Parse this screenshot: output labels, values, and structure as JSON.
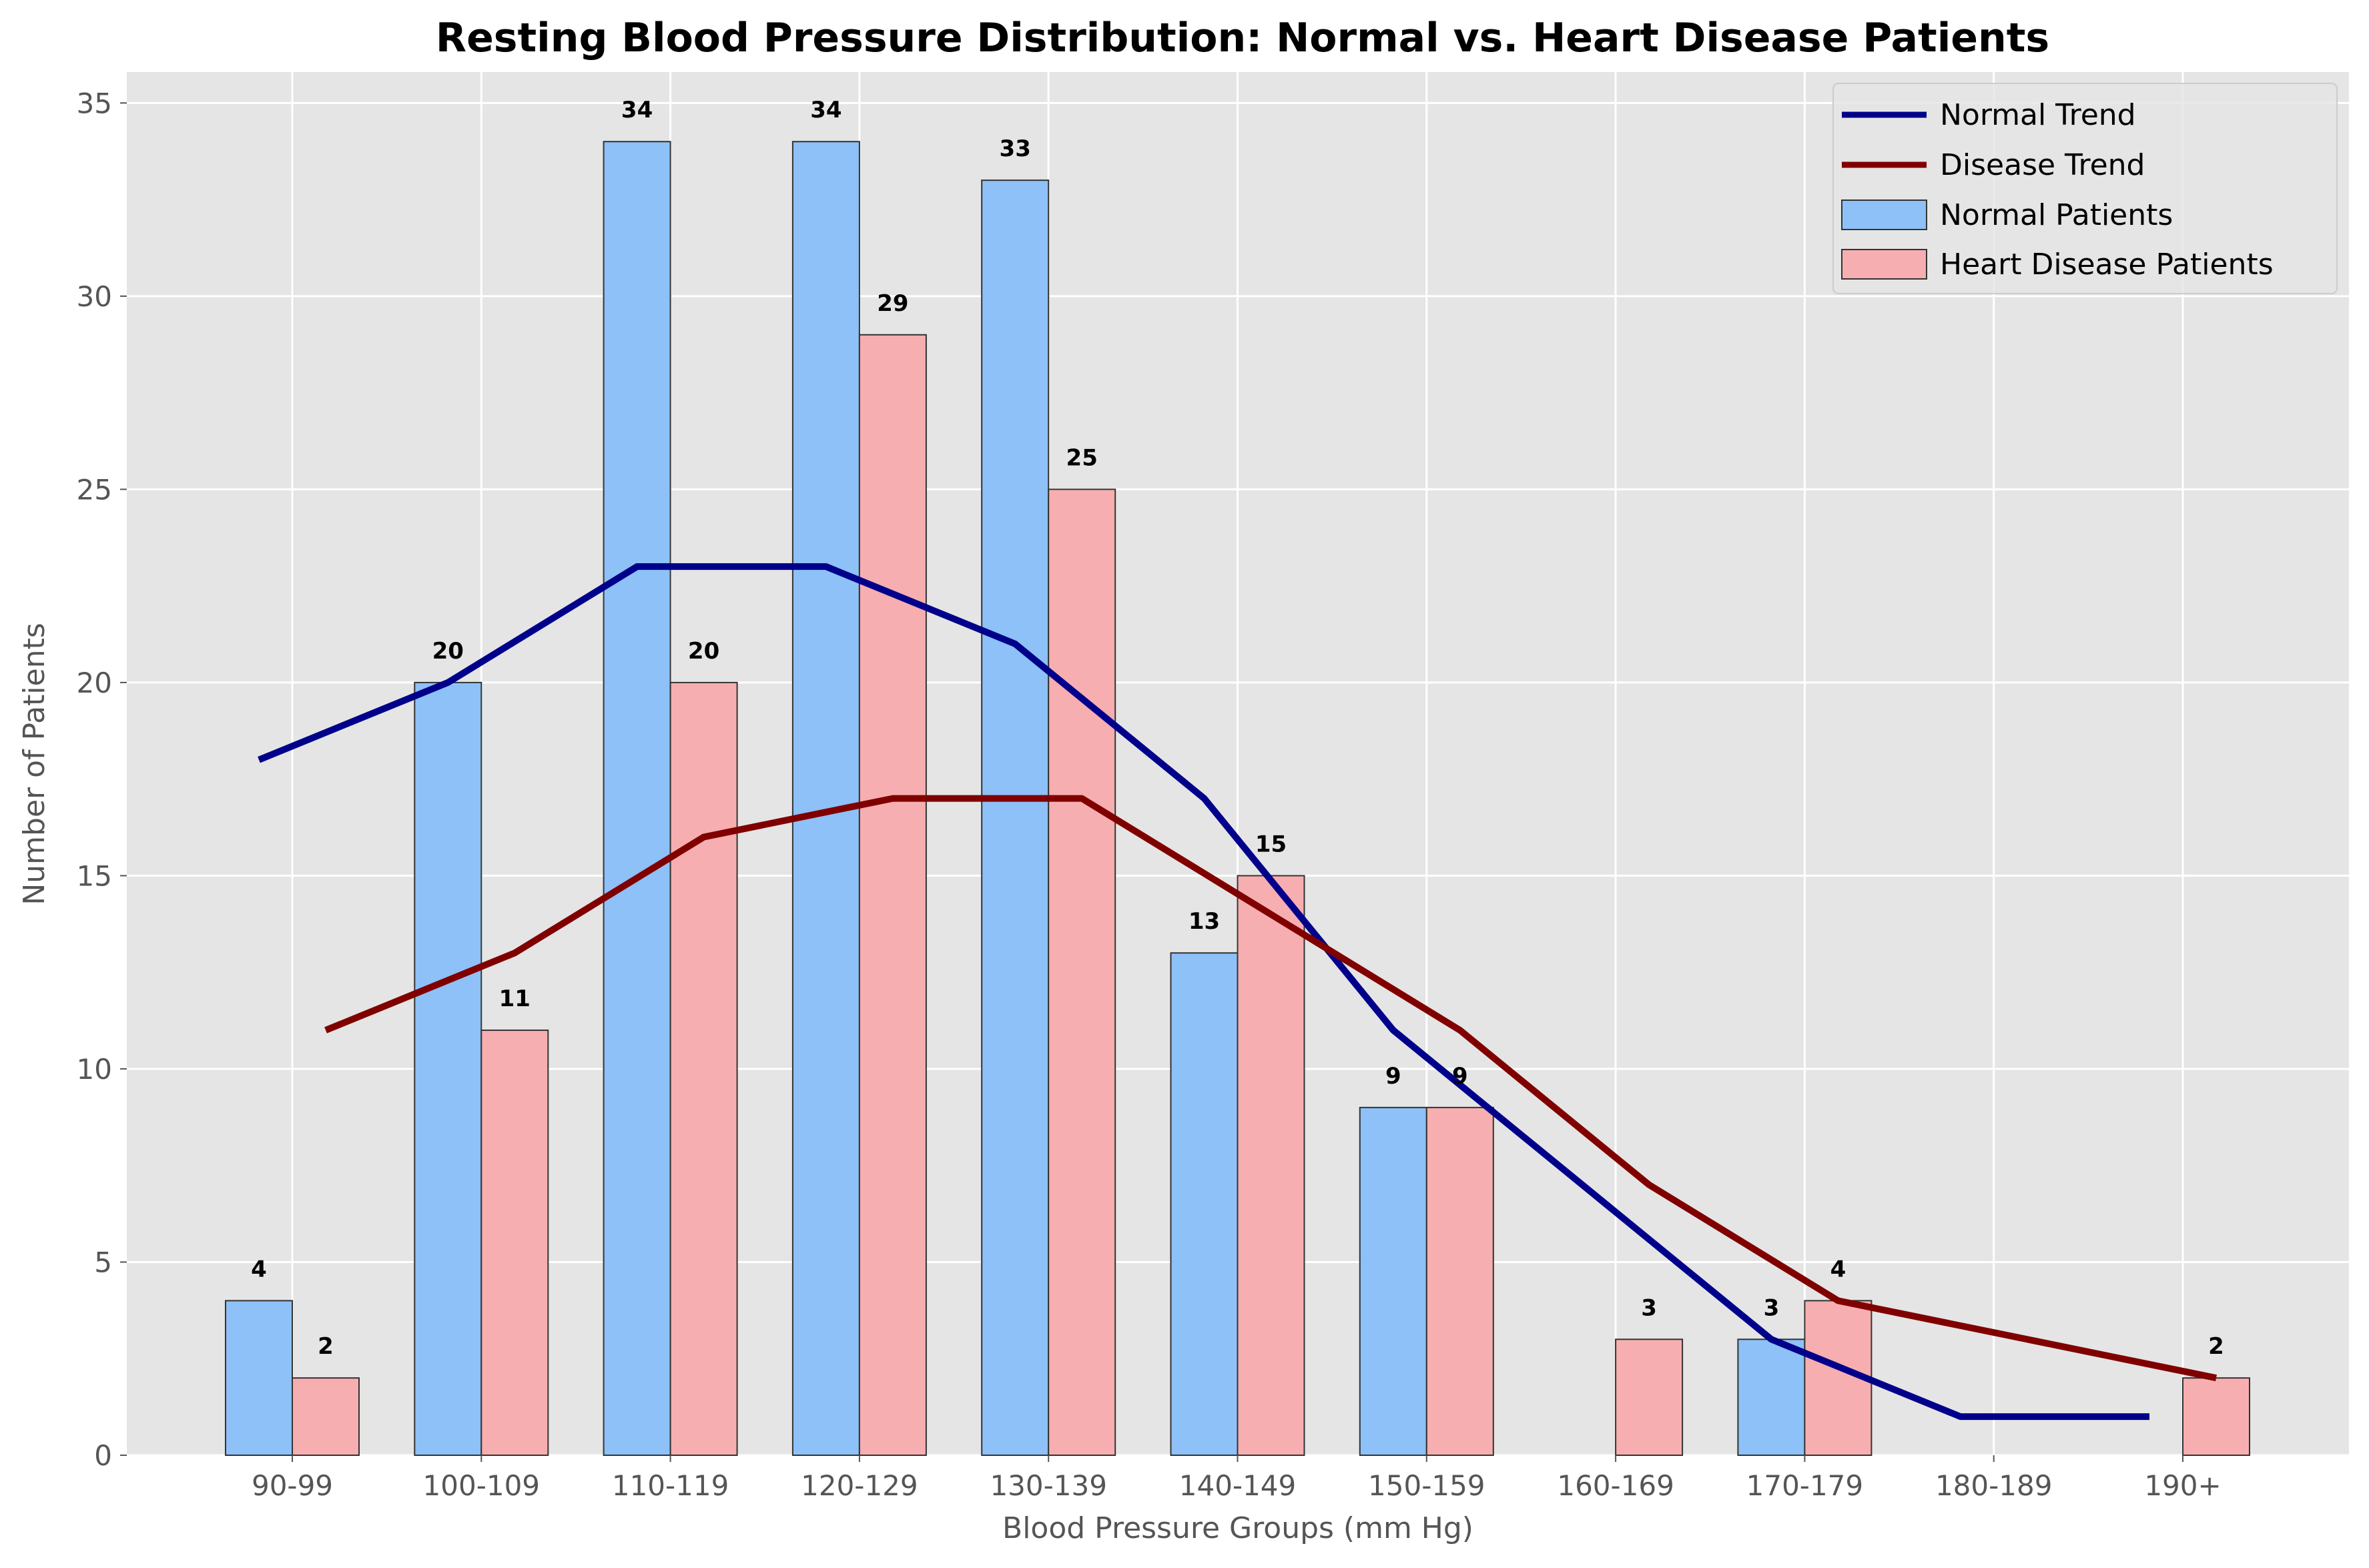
{
  "chart_data": {
    "type": "bar",
    "title": "Resting Blood Pressure Distribution: Normal vs. Heart Disease Patients",
    "xlabel": "Blood Pressure Groups (mm Hg)",
    "ylabel": "Number of Patients",
    "ylim": [
      0,
      35.8
    ],
    "yticks": [
      0,
      5,
      10,
      15,
      20,
      25,
      30,
      35
    ],
    "grid": true,
    "legend_position": "top-right",
    "categories": [
      "90-99",
      "100-109",
      "110-119",
      "120-129",
      "130-139",
      "140-149",
      "150-159",
      "160-169",
      "170-179",
      "180-189",
      "190+"
    ],
    "series": [
      {
        "name": "Normal Patients",
        "kind": "bar",
        "color": "#8dc1f7",
        "values": [
          4,
          20,
          34,
          34,
          33,
          13,
          9,
          0,
          3,
          0,
          0
        ]
      },
      {
        "name": "Heart Disease Patients",
        "kind": "bar",
        "color": "#f7aeb0",
        "values": [
          2,
          11,
          20,
          29,
          25,
          15,
          9,
          3,
          4,
          0,
          2
        ]
      },
      {
        "name": "Normal Trend",
        "kind": "line",
        "color": "#00008b",
        "values": [
          18,
          20,
          23,
          23,
          21,
          17,
          11,
          7,
          3,
          1,
          1
        ]
      },
      {
        "name": "Disease Trend",
        "kind": "line",
        "color": "#800000",
        "values": [
          11,
          13,
          16,
          17,
          17,
          14,
          11,
          7,
          4,
          3,
          2
        ]
      }
    ]
  }
}
